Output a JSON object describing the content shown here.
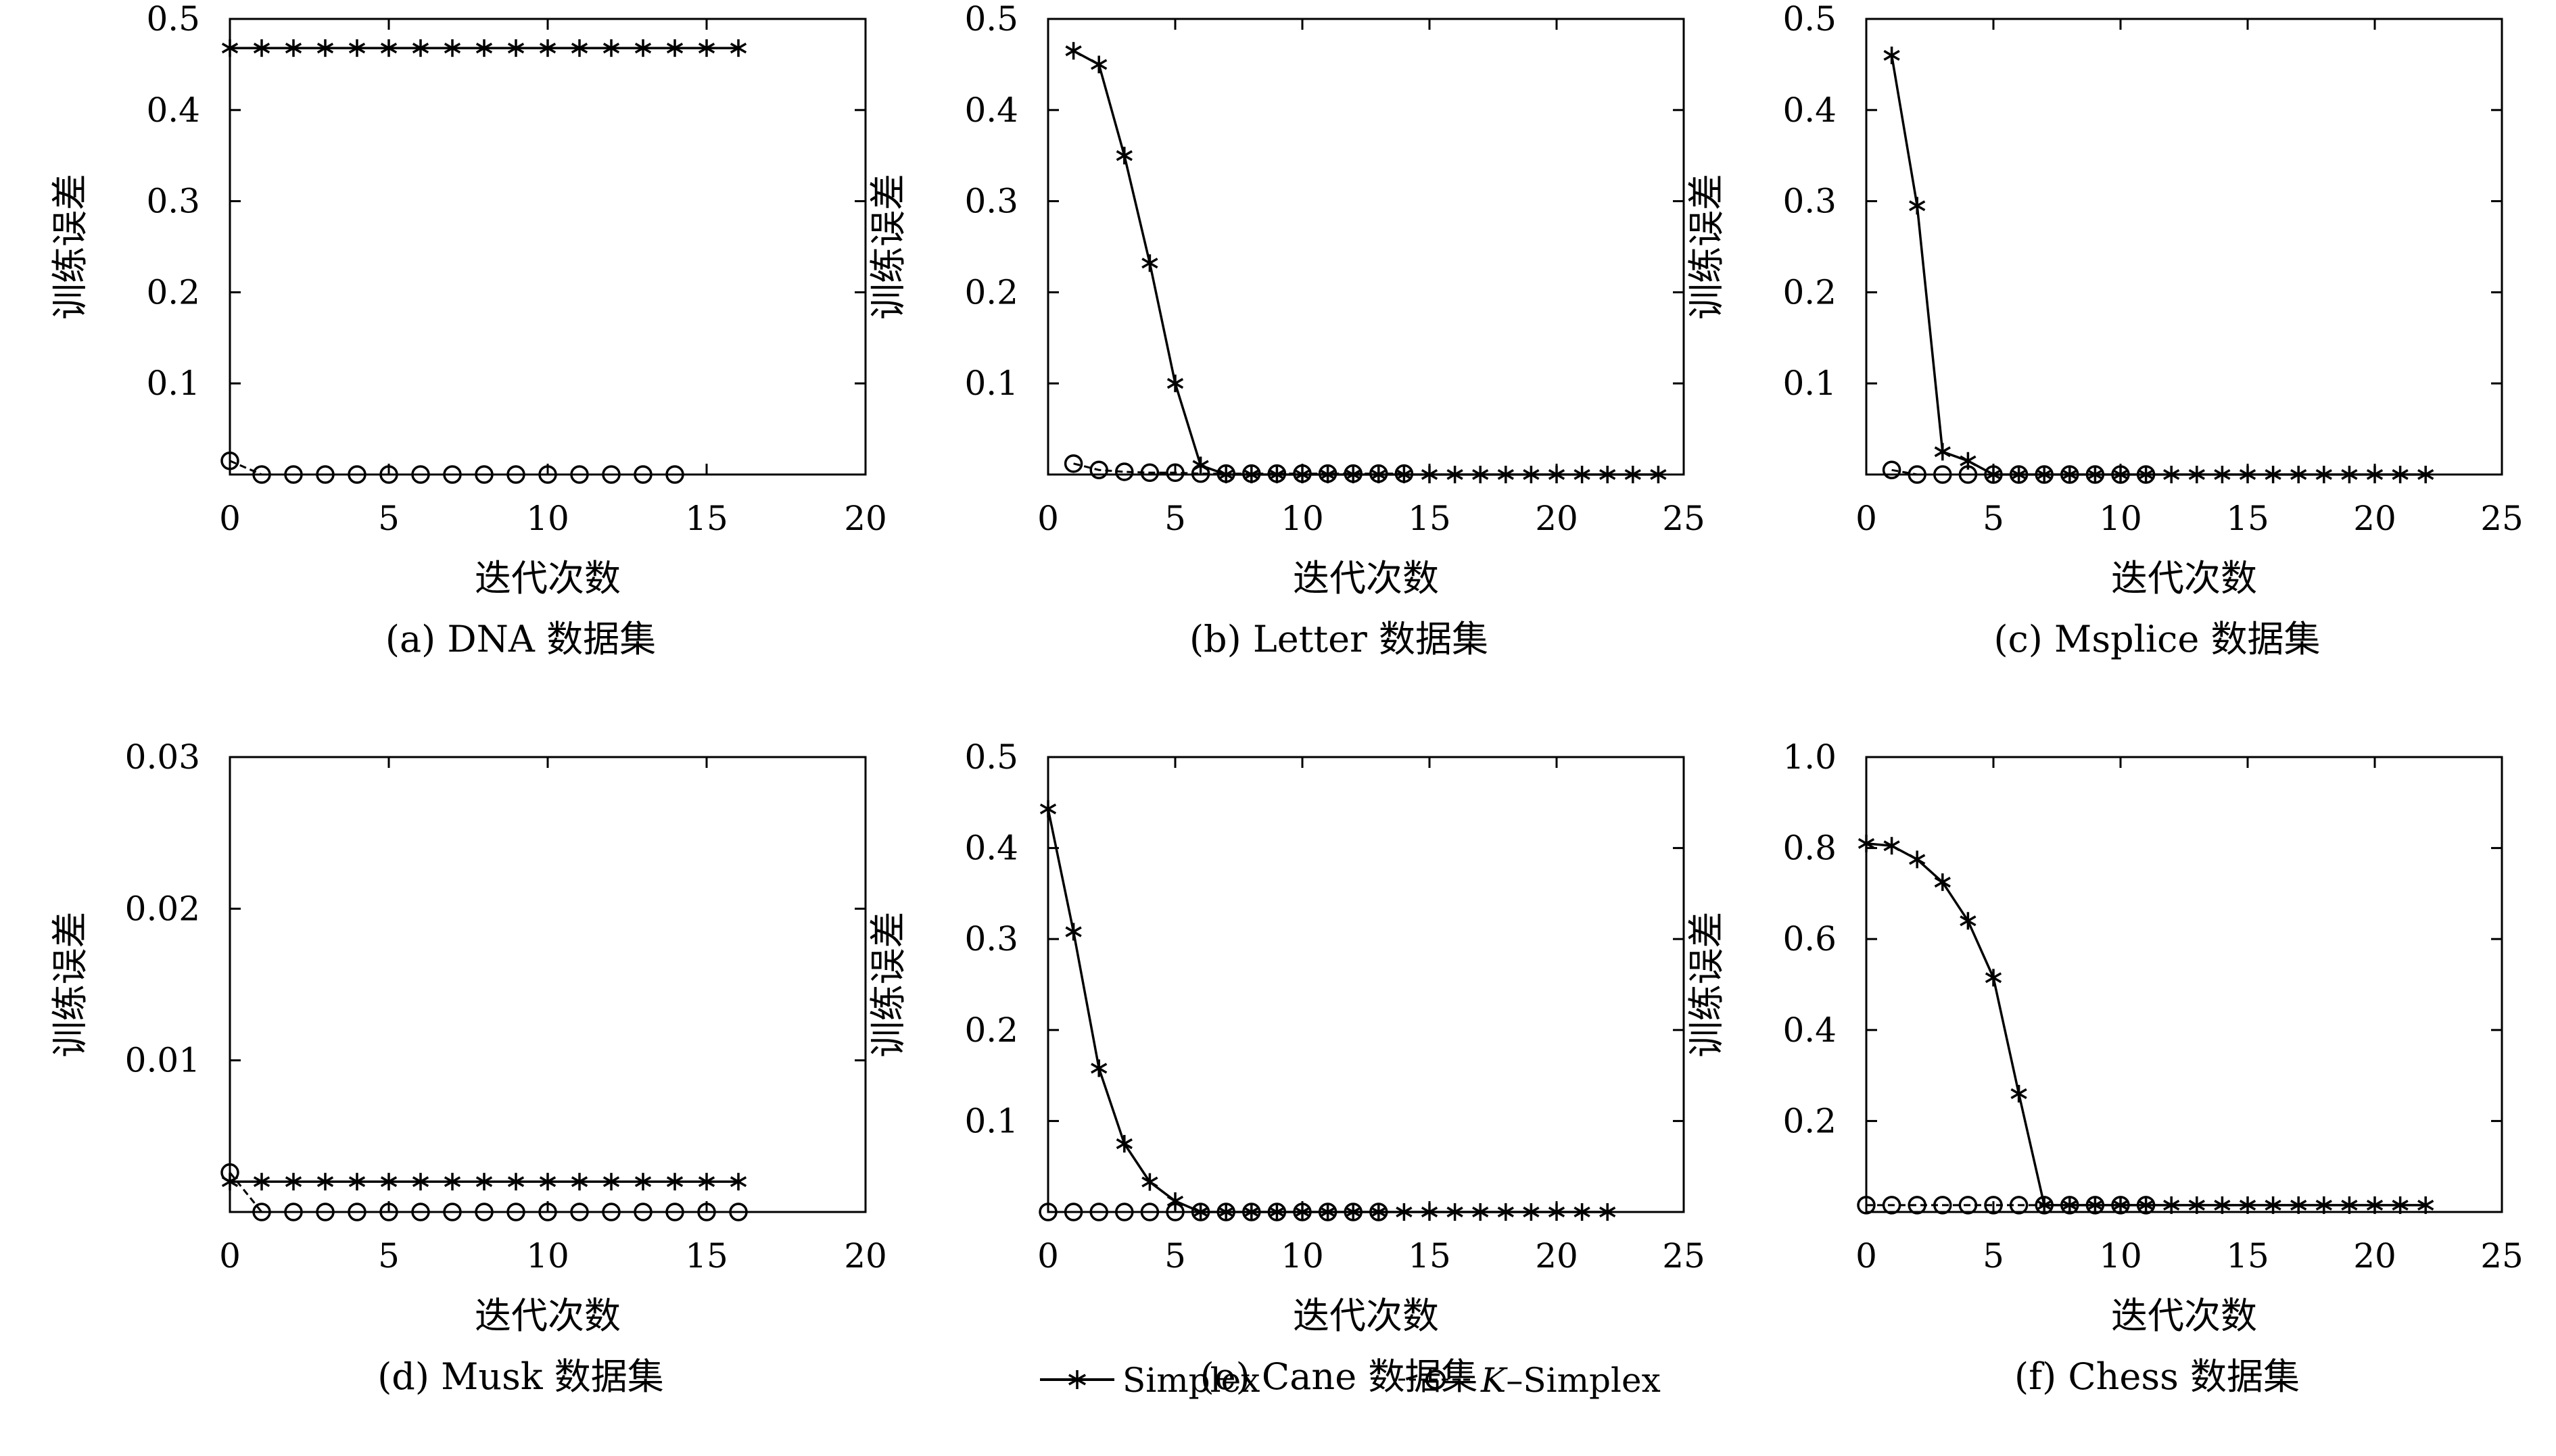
{
  "legend": {
    "simplex_label": "Simplex",
    "ksimplex_k": "K",
    "ksimplex_rest": "–Simplex"
  },
  "chart_data": [
    {
      "type": "line",
      "caption": "(a) DNA 数据集",
      "xlabel": "迭代次数",
      "ylabel": "训练误差",
      "xlim": [
        0,
        20
      ],
      "ylim": [
        0,
        0.5
      ],
      "xticks": [
        "0",
        "5",
        "10",
        "15",
        "20"
      ],
      "xtick_values": [
        0,
        5,
        10,
        15,
        20
      ],
      "yticks": [
        "0.1",
        "0.2",
        "0.3",
        "0.4",
        "0.5"
      ],
      "ytick_values": [
        0.1,
        0.2,
        0.3,
        0.4,
        0.5
      ],
      "series": [
        {
          "name": "Simplex",
          "marker": "star",
          "x": [
            0,
            1,
            2,
            3,
            4,
            5,
            6,
            7,
            8,
            9,
            10,
            11,
            12,
            13,
            14,
            15,
            16
          ],
          "y": [
            0.468,
            0.468,
            0.468,
            0.468,
            0.468,
            0.468,
            0.468,
            0.468,
            0.468,
            0.468,
            0.468,
            0.468,
            0.468,
            0.468,
            0.468,
            0.468,
            0.468
          ]
        },
        {
          "name": "K–Simplex",
          "marker": "circle",
          "x": [
            0,
            1,
            2,
            3,
            4,
            5,
            6,
            7,
            8,
            9,
            10,
            11,
            12,
            13,
            14
          ],
          "y": [
            0.015,
            0,
            0,
            0,
            0,
            0,
            0,
            0,
            0,
            0,
            0,
            0,
            0,
            0,
            0
          ]
        }
      ]
    },
    {
      "type": "line",
      "caption": "(b) Letter 数据集",
      "xlabel": "迭代次数",
      "ylabel": "训练误差",
      "xlim": [
        0,
        25
      ],
      "ylim": [
        0,
        0.5
      ],
      "xticks": [
        "0",
        "5",
        "10",
        "15",
        "20",
        "25"
      ],
      "xtick_values": [
        0,
        5,
        10,
        15,
        20,
        25
      ],
      "yticks": [
        "0.1",
        "0.2",
        "0.3",
        "0.4",
        "0.5"
      ],
      "ytick_values": [
        0.1,
        0.2,
        0.3,
        0.4,
        0.5
      ],
      "series": [
        {
          "name": "Simplex",
          "marker": "star",
          "x": [
            1,
            2,
            3,
            4,
            5,
            6,
            7,
            8,
            9,
            10,
            11,
            12,
            13,
            14,
            15,
            16,
            17,
            18,
            19,
            20,
            21,
            22,
            23,
            24
          ],
          "y": [
            0.465,
            0.45,
            0.35,
            0.232,
            0.1,
            0.01,
            0,
            0,
            0,
            0,
            0,
            0,
            0,
            0,
            0,
            0,
            0,
            0,
            0,
            0,
            0,
            0,
            0,
            0
          ]
        },
        {
          "name": "K–Simplex",
          "marker": "circle",
          "x": [
            1,
            2,
            3,
            4,
            5,
            6,
            7,
            8,
            9,
            10,
            11,
            12,
            13,
            14
          ],
          "y": [
            0.012,
            0.005,
            0.003,
            0.002,
            0.002,
            0.001,
            0.001,
            0.001,
            0.001,
            0.001,
            0.001,
            0.001,
            0.001,
            0.001
          ]
        }
      ]
    },
    {
      "type": "line",
      "caption": "(c) Msplice 数据集",
      "xlabel": "迭代次数",
      "ylabel": "训练误差",
      "xlim": [
        0,
        25
      ],
      "ylim": [
        0,
        0.5
      ],
      "xticks": [
        "0",
        "5",
        "10",
        "15",
        "20",
        "25"
      ],
      "xtick_values": [
        0,
        5,
        10,
        15,
        20,
        25
      ],
      "yticks": [
        "0.1",
        "0.2",
        "0.3",
        "0.4",
        "0.5"
      ],
      "ytick_values": [
        0.1,
        0.2,
        0.3,
        0.4,
        0.5
      ],
      "series": [
        {
          "name": "Simplex",
          "marker": "star",
          "x": [
            1,
            2,
            3,
            4,
            5,
            6,
            7,
            8,
            9,
            10,
            11,
            12,
            13,
            14,
            15,
            16,
            17,
            18,
            19,
            20,
            21,
            22
          ],
          "y": [
            0.46,
            0.295,
            0.025,
            0.015,
            0,
            0,
            0,
            0,
            0,
            0,
            0,
            0,
            0,
            0,
            0,
            0,
            0,
            0,
            0,
            0,
            0,
            0
          ]
        },
        {
          "name": "K–Simplex",
          "marker": "circle",
          "x": [
            1,
            2,
            3,
            4,
            5,
            6,
            7,
            8,
            9,
            10,
            11
          ],
          "y": [
            0.005,
            0,
            0,
            0,
            0,
            0,
            0,
            0,
            0,
            0,
            0
          ]
        }
      ]
    },
    {
      "type": "line",
      "caption": "(d) Musk 数据集",
      "xlabel": "迭代次数",
      "ylabel": "训练误差",
      "xlim": [
        0,
        20
      ],
      "ylim": [
        0,
        0.03
      ],
      "xticks": [
        "0",
        "5",
        "10",
        "15",
        "20"
      ],
      "xtick_values": [
        0,
        5,
        10,
        15,
        20
      ],
      "yticks": [
        "0.01",
        "0.02",
        "0.03"
      ],
      "ytick_values": [
        0.01,
        0.02,
        0.03
      ],
      "series": [
        {
          "name": "Simplex",
          "marker": "star",
          "x": [
            0,
            1,
            2,
            3,
            4,
            5,
            6,
            7,
            8,
            9,
            10,
            11,
            12,
            13,
            14,
            15,
            16
          ],
          "y": [
            0.002,
            0.002,
            0.002,
            0.002,
            0.002,
            0.002,
            0.002,
            0.002,
            0.002,
            0.002,
            0.002,
            0.002,
            0.002,
            0.002,
            0.002,
            0.002,
            0.002
          ]
        },
        {
          "name": "K–Simplex",
          "marker": "circle",
          "x": [
            0,
            1,
            2,
            3,
            4,
            5,
            6,
            7,
            8,
            9,
            10,
            11,
            12,
            13,
            14,
            15,
            16
          ],
          "y": [
            0.0026,
            0,
            0,
            0,
            0,
            0,
            0,
            0,
            0,
            0,
            0,
            0,
            0,
            0,
            0,
            0,
            0
          ]
        }
      ]
    },
    {
      "type": "line",
      "caption": "(e) Cane 数据集",
      "xlabel": "迭代次数",
      "ylabel": "训练误差",
      "xlim": [
        0,
        25
      ],
      "ylim": [
        0,
        0.5
      ],
      "xticks": [
        "0",
        "5",
        "10",
        "15",
        "20",
        "25"
      ],
      "xtick_values": [
        0,
        5,
        10,
        15,
        20,
        25
      ],
      "yticks": [
        "0.1",
        "0.2",
        "0.3",
        "0.4",
        "0.5"
      ],
      "ytick_values": [
        0.1,
        0.2,
        0.3,
        0.4,
        0.5
      ],
      "series": [
        {
          "name": "Simplex",
          "marker": "star",
          "x": [
            0,
            1,
            2,
            3,
            4,
            5,
            6,
            7,
            8,
            9,
            10,
            11,
            12,
            13,
            14,
            15,
            16,
            17,
            18,
            19,
            20,
            21,
            22
          ],
          "y": [
            0.443,
            0.308,
            0.158,
            0.075,
            0.033,
            0.012,
            0,
            0,
            0,
            0,
            0,
            0,
            0,
            0,
            0,
            0,
            0,
            0,
            0,
            0,
            0,
            0,
            0
          ]
        },
        {
          "name": "K–Simplex",
          "marker": "circle",
          "x": [
            0,
            1,
            2,
            3,
            4,
            5,
            6,
            7,
            8,
            9,
            10,
            11,
            12,
            13
          ],
          "y": [
            0,
            0,
            0,
            0,
            0,
            0,
            0,
            0,
            0,
            0,
            0,
            0,
            0,
            0
          ]
        }
      ]
    },
    {
      "type": "line",
      "caption": "(f) Chess 数据集",
      "xlabel": "迭代次数",
      "ylabel": "训练误差",
      "xlim": [
        0,
        25
      ],
      "ylim": [
        0,
        1.0
      ],
      "xticks": [
        "0",
        "5",
        "10",
        "15",
        "20",
        "25"
      ],
      "xtick_values": [
        0,
        5,
        10,
        15,
        20,
        25
      ],
      "yticks": [
        "0.2",
        "0.4",
        "0.6",
        "0.8",
        "1.0"
      ],
      "ytick_values": [
        0.2,
        0.4,
        0.6,
        0.8,
        1.0
      ],
      "series": [
        {
          "name": "Simplex",
          "marker": "star",
          "x": [
            0,
            1,
            2,
            3,
            4,
            5,
            6,
            7,
            8,
            9,
            10,
            11,
            12,
            13,
            14,
            15,
            16,
            17,
            18,
            19,
            20,
            21,
            22
          ],
          "y": [
            0.81,
            0.805,
            0.775,
            0.725,
            0.64,
            0.515,
            0.26,
            0.015,
            0.015,
            0.015,
            0.015,
            0.015,
            0.015,
            0.015,
            0.015,
            0.015,
            0.015,
            0.015,
            0.015,
            0.015,
            0.015,
            0.015,
            0.015
          ]
        },
        {
          "name": "K–Simplex",
          "marker": "circle",
          "x": [
            0,
            1,
            2,
            3,
            4,
            5,
            6,
            7,
            8,
            9,
            10,
            11
          ],
          "y": [
            0.015,
            0.015,
            0.015,
            0.015,
            0.015,
            0.015,
            0.015,
            0.015,
            0.015,
            0.015,
            0.015,
            0.015
          ]
        }
      ]
    }
  ]
}
